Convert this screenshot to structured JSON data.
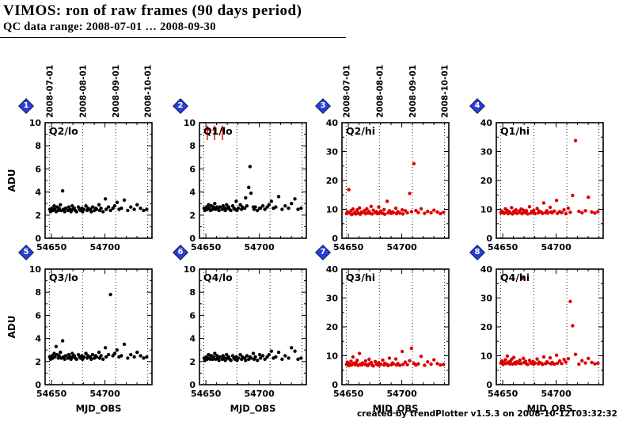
{
  "header": {
    "title": "VIMOS: ron of raw frames (90 days period)",
    "subtitle": "QC data range: 2008-07-01 … 2008-09-30"
  },
  "footer": {
    "credit": "created by trendPlotter v1.5.3 on 2008-10-12T03:32:32"
  },
  "chart_data": {
    "type": "scatter",
    "title": "VIMOS: ron of raw frames (90 days period)",
    "xlabel": "MJD_OBS",
    "ylabel": "ADU",
    "xlim": [
      54644,
      54744
    ],
    "xticks": [
      54650,
      54700
    ],
    "minor_x_step": 10,
    "grid": "dotted vertical month lines",
    "month_marks": [
      {
        "label": "2008-07-01",
        "mjd": 54648
      },
      {
        "label": "2008-08-01",
        "mjd": 54679
      },
      {
        "label": "2008-09-01",
        "mjd": 54710
      },
      {
        "label": "2008-10-01",
        "mjd": 54740
      }
    ],
    "x": [
      54648.3,
      54649.1,
      54650.4,
      54651.2,
      54652.5,
      54653.1,
      54654.3,
      54655.2,
      54656.4,
      54657.1,
      54658.3,
      54659.2,
      54660.4,
      54661.1,
      54662.3,
      54663.2,
      54665.4,
      54666.1,
      54667.3,
      54668.2,
      54669.4,
      54670.1,
      54671.3,
      54672.2,
      54673.4,
      54675.1,
      54676.3,
      54677.2,
      54678.4,
      54679.1,
      54680.3,
      54682.2,
      54683.4,
      54684.1,
      54686.3,
      54687.2,
      54688.4,
      54690.1,
      54691.3,
      54692.2,
      54694.4,
      54695.1,
      54696.3,
      54698.2,
      54700.4,
      54701.1,
      54703.3,
      54705.2,
      54707.4,
      54709.1,
      54711.3,
      54713.2,
      54715.4,
      54718.1,
      54721.3,
      54724.2,
      54727.4,
      54730.1,
      54733.3,
      54736.2,
      54739.1
    ],
    "panels": [
      {
        "index": 1,
        "label": "Q2/lo",
        "color": "#000000",
        "ylim": [
          0,
          10
        ],
        "yticks": [
          0,
          2,
          4,
          6,
          8,
          10
        ],
        "minor_y_step": 1,
        "show_dates": true,
        "ylabel": "ADU",
        "xlabel": "",
        "y": [
          2.5,
          2.3,
          2.6,
          2.4,
          2.8,
          2.5,
          2.3,
          2.7,
          2.4,
          2.6,
          2.9,
          2.4,
          4.1,
          2.5,
          2.3,
          2.6,
          2.4,
          2.7,
          2.5,
          2.3,
          2.8,
          2.5,
          2.6,
          2.4,
          2.3,
          2.7,
          2.5,
          2.4,
          2.6,
          2.3,
          2.5,
          2.8,
          2.4,
          2.6,
          2.5,
          2.3,
          2.7,
          2.4,
          2.6,
          2.5,
          2.9,
          2.4,
          2.6,
          2.3,
          3.4,
          2.5,
          2.7,
          2.4,
          2.6,
          2.8,
          3.1,
          2.5,
          2.6,
          3.3,
          2.4,
          2.7,
          2.5,
          2.9,
          2.6,
          2.4,
          2.5
        ]
      },
      {
        "index": 2,
        "label": "Q1/lo",
        "color": "#000000",
        "ylim": [
          0,
          10
        ],
        "yticks": [
          0,
          2,
          4,
          6,
          8,
          10
        ],
        "minor_y_step": 1,
        "show_dates": false,
        "ylabel": "",
        "xlabel": "",
        "arrows": [
          54651.4,
          54658.1,
          54665.5
        ],
        "arrow_color": "#dd0000",
        "y": [
          2.6,
          2.4,
          2.7,
          2.5,
          2.9,
          2.6,
          2.4,
          2.8,
          2.5,
          2.7,
          3.0,
          2.5,
          2.7,
          2.6,
          2.4,
          2.7,
          2.5,
          2.8,
          2.6,
          2.4,
          2.9,
          2.6,
          2.7,
          2.5,
          2.4,
          2.8,
          2.6,
          2.5,
          3.2,
          2.4,
          2.6,
          2.9,
          2.5,
          2.7,
          2.6,
          3.5,
          2.8,
          4.4,
          6.2,
          3.9,
          2.7,
          2.5,
          2.7,
          2.4,
          2.6,
          2.6,
          2.8,
          2.5,
          2.7,
          2.9,
          3.2,
          2.6,
          2.7,
          3.6,
          2.5,
          2.8,
          2.6,
          3.0,
          3.4,
          2.5,
          2.6
        ]
      },
      {
        "index": 3,
        "label": "Q2/hi",
        "color": "#dd0000",
        "ylim": [
          0,
          40
        ],
        "yticks": [
          0,
          10,
          20,
          30,
          40
        ],
        "minor_y_step": 5,
        "show_dates": true,
        "ylabel": "",
        "xlabel": "",
        "y": [
          8.5,
          9.2,
          16.8,
          8.8,
          9.5,
          8.2,
          10.1,
          8.6,
          9.0,
          8.4,
          9.8,
          8.7,
          10.5,
          8.3,
          9.1,
          8.9,
          9.6,
          8.5,
          10.2,
          8.8,
          9.3,
          8.6,
          11.0,
          8.4,
          9.7,
          8.9,
          9.2,
          8.5,
          10.8,
          8.7,
          9.4,
          8.6,
          9.9,
          8.3,
          12.8,
          8.8,
          9.5,
          8.6,
          9.1,
          8.9,
          10.4,
          8.5,
          9.2,
          8.7,
          9.8,
          8.4,
          9.5,
          8.8,
          15.5,
          9.2,
          25.8,
          9.6,
          8.9,
          10.2,
          8.6,
          9.3,
          8.8,
          9.7,
          9.1,
          8.5,
          9.0
        ]
      },
      {
        "index": 4,
        "label": "Q1/hi",
        "color": "#dd0000",
        "ylim": [
          0,
          40
        ],
        "yticks": [
          0,
          10,
          20,
          30,
          40
        ],
        "minor_y_step": 5,
        "show_dates": false,
        "ylabel": "",
        "xlabel": "",
        "y": [
          8.8,
          9.4,
          9.0,
          8.6,
          10.2,
          8.9,
          9.6,
          8.5,
          9.2,
          8.8,
          10.6,
          8.4,
          9.3,
          9.0,
          9.8,
          8.6,
          9.4,
          8.9,
          10.1,
          8.5,
          9.7,
          9.2,
          8.8,
          9.5,
          8.4,
          10.9,
          8.7,
          9.3,
          8.9,
          9.6,
          8.5,
          10.3,
          8.8,
          9.4,
          9.0,
          8.6,
          12.2,
          8.9,
          9.5,
          8.7,
          10.7,
          9.1,
          8.8,
          9.4,
          13.1,
          8.6,
          9.2,
          8.9,
          9.8,
          8.5,
          10.4,
          9.0,
          14.8,
          33.8,
          9.3,
          8.8,
          9.5,
          14.2,
          9.1,
          8.7,
          9.2
        ]
      },
      {
        "index": 5,
        "label": "Q3/lo",
        "color": "#000000",
        "ylim": [
          0,
          10
        ],
        "yticks": [
          0,
          2,
          4,
          6,
          8,
          10
        ],
        "minor_y_step": 1,
        "show_dates": false,
        "ylabel": "ADU",
        "xlabel": "MJD_OBS",
        "y": [
          2.4,
          2.2,
          2.5,
          2.3,
          2.7,
          2.4,
          3.3,
          2.6,
          2.3,
          2.5,
          2.8,
          2.3,
          3.8,
          2.4,
          2.2,
          2.5,
          2.3,
          2.6,
          2.4,
          2.2,
          2.7,
          2.4,
          2.5,
          2.3,
          2.2,
          2.6,
          2.4,
          2.3,
          2.5,
          2.2,
          2.4,
          2.7,
          2.3,
          2.5,
          2.4,
          2.2,
          2.6,
          2.3,
          2.5,
          2.4,
          2.8,
          2.3,
          2.5,
          2.2,
          3.2,
          2.4,
          2.6,
          7.8,
          2.5,
          2.7,
          3.0,
          2.4,
          2.5,
          3.5,
          2.3,
          2.6,
          2.4,
          2.8,
          2.5,
          2.3,
          2.4
        ]
      },
      {
        "index": 6,
        "label": "Q4/lo",
        "color": "#000000",
        "ylim": [
          0,
          10
        ],
        "yticks": [
          0,
          2,
          4,
          6,
          8,
          10
        ],
        "minor_y_step": 1,
        "show_dates": false,
        "ylabel": "",
        "xlabel": "MJD_OBS",
        "y": [
          2.3,
          2.1,
          2.4,
          2.2,
          2.6,
          2.3,
          2.2,
          2.5,
          2.2,
          2.4,
          2.7,
          2.2,
          2.5,
          2.3,
          2.1,
          2.4,
          2.2,
          2.5,
          2.3,
          2.1,
          2.6,
          2.3,
          2.4,
          2.2,
          2.1,
          2.5,
          2.3,
          2.2,
          2.4,
          2.1,
          2.3,
          2.6,
          2.2,
          2.4,
          2.3,
          2.1,
          2.5,
          2.2,
          2.4,
          2.3,
          2.7,
          2.2,
          2.4,
          2.1,
          2.6,
          2.3,
          2.5,
          2.2,
          2.4,
          2.6,
          2.9,
          2.3,
          2.4,
          2.8,
          2.2,
          2.5,
          2.3,
          3.2,
          2.9,
          2.2,
          2.3
        ]
      },
      {
        "index": 7,
        "label": "Q3/hi",
        "color": "#dd0000",
        "ylim": [
          0,
          40
        ],
        "yticks": [
          0,
          10,
          20,
          30,
          40
        ],
        "minor_y_step": 5,
        "show_dates": false,
        "ylabel": "",
        "xlabel": "MJD_OBS",
        "y": [
          7.0,
          7.8,
          6.6,
          7.2,
          8.1,
          6.8,
          9.6,
          7.4,
          6.9,
          7.6,
          8.4,
          6.7,
          10.8,
          7.1,
          6.8,
          7.5,
          7.0,
          8.2,
          6.9,
          6.6,
          8.8,
          7.3,
          7.7,
          6.8,
          6.5,
          8.0,
          7.2,
          6.9,
          7.6,
          6.7,
          7.1,
          8.5,
          6.8,
          7.4,
          7.0,
          6.6,
          9.2,
          6.9,
          7.5,
          7.2,
          8.9,
          6.8,
          7.3,
          6.7,
          11.5,
          7.0,
          7.8,
          6.9,
          8.3,
          12.6,
          7.4,
          6.8,
          7.2,
          9.8,
          6.7,
          7.9,
          7.1,
          8.6,
          7.3,
          6.8,
          7.0
        ]
      },
      {
        "index": 8,
        "label": "Q4/hi",
        "color": "#dd0000",
        "ylim": [
          0,
          40
        ],
        "yticks": [
          0,
          10,
          20,
          30,
          40
        ],
        "minor_y_step": 5,
        "show_dates": false,
        "ylabel": "",
        "xlabel": "MJD_OBS",
        "y": [
          7.5,
          8.2,
          7.0,
          7.7,
          8.6,
          7.3,
          9.9,
          7.8,
          7.2,
          8.0,
          8.8,
          7.1,
          9.4,
          7.6,
          7.2,
          7.9,
          7.4,
          8.5,
          7.3,
          36.8,
          9.1,
          7.7,
          8.1,
          7.2,
          7.0,
          8.4,
          7.6,
          7.3,
          8.0,
          7.1,
          7.5,
          8.9,
          7.2,
          7.8,
          7.4,
          7.0,
          9.6,
          7.3,
          7.9,
          7.6,
          9.3,
          7.2,
          7.7,
          7.1,
          10.2,
          7.4,
          8.2,
          7.3,
          8.7,
          7.8,
          9.0,
          28.8,
          20.4,
          10.5,
          7.1,
          8.3,
          7.5,
          9.1,
          7.7,
          7.2,
          7.4
        ]
      }
    ]
  }
}
